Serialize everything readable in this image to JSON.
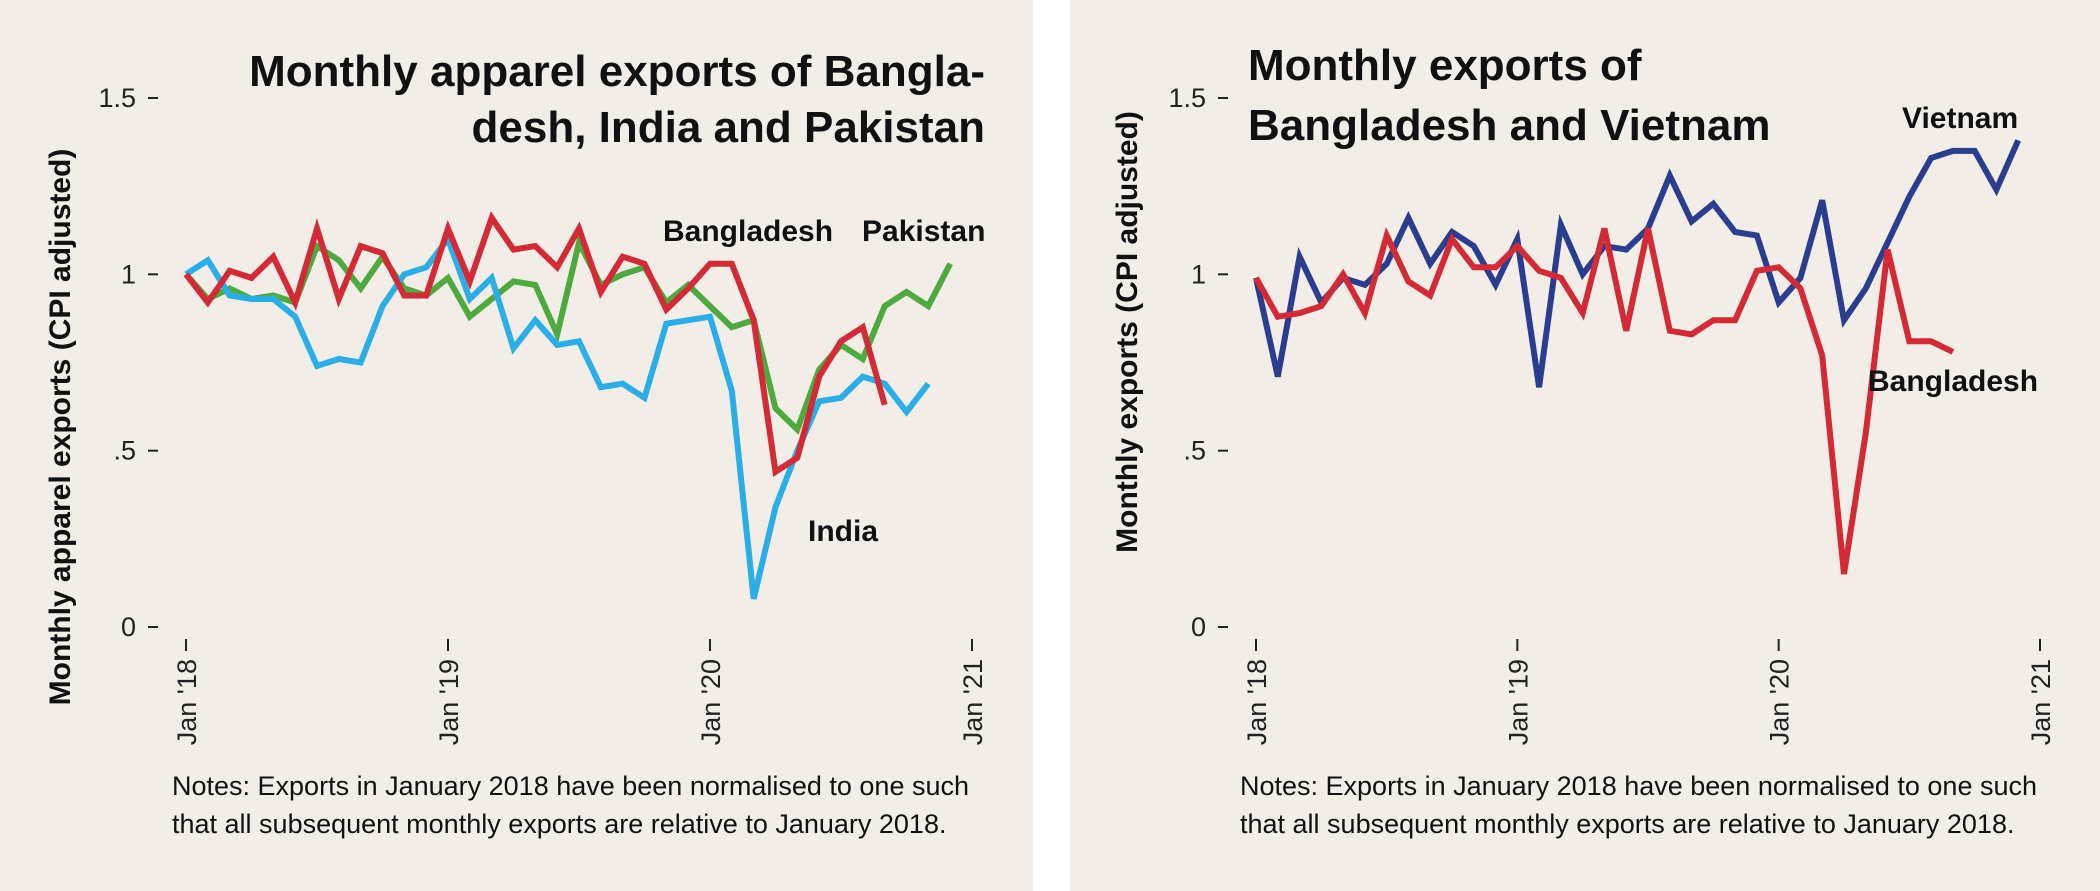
{
  "chart_data": [
    {
      "type": "line",
      "title_lines": [
        "Monthly apparel exports of Bangla-",
        "desh, India and Pakistan"
      ],
      "ylabel": "Monthly apparel exports (CPI adjusted)",
      "xlabel": "",
      "ylim": [
        0,
        1.5
      ],
      "yticks": [
        {
          "value": 0,
          "label": "0"
        },
        {
          "value": 0.5,
          "label": ".5"
        },
        {
          "value": 1,
          "label": "1"
        },
        {
          "value": 1.5,
          "label": "1.5"
        }
      ],
      "xticks": [
        {
          "month": 0,
          "label": "Jan '18"
        },
        {
          "month": 12,
          "label": "Jan '19"
        },
        {
          "month": 24,
          "label": "Jan '20"
        },
        {
          "month": 36,
          "label": "Jan '21"
        }
      ],
      "x_months": [
        0,
        1,
        2,
        3,
        4,
        5,
        6,
        7,
        8,
        9,
        10,
        11,
        12,
        13,
        14,
        15,
        16,
        17,
        18,
        19,
        20,
        21,
        22,
        23,
        24,
        25,
        26,
        27,
        28,
        29,
        30,
        31,
        32,
        33,
        34,
        35,
        36
      ],
      "series": [
        {
          "name": "Pakistan",
          "color": "#4daa3f",
          "values": [
            1.0,
            0.93,
            0.96,
            0.93,
            0.94,
            0.92,
            1.08,
            1.04,
            0.96,
            1.05,
            0.96,
            0.94,
            0.99,
            0.88,
            0.93,
            0.98,
            0.97,
            0.83,
            1.09,
            0.97,
            1.0,
            1.02,
            0.92,
            0.97,
            0.91,
            0.85,
            0.87,
            0.62,
            0.56,
            0.73,
            0.8,
            0.76,
            0.91,
            0.95,
            0.91,
            1.03,
            null
          ]
        },
        {
          "name": "India",
          "color": "#29aee8",
          "values": [
            1.0,
            1.04,
            0.94,
            0.93,
            0.93,
            0.88,
            0.74,
            0.76,
            0.75,
            0.91,
            1.0,
            1.02,
            1.1,
            0.93,
            0.99,
            0.79,
            0.87,
            0.8,
            0.81,
            0.68,
            0.69,
            0.65,
            0.86,
            0.87,
            0.88,
            0.67,
            0.08,
            0.34,
            0.5,
            0.64,
            0.65,
            0.71,
            0.69,
            0.61,
            0.69,
            null,
            null
          ]
        },
        {
          "name": "Bangladesh",
          "color": "#d42a35",
          "values": [
            1.0,
            0.92,
            1.01,
            0.99,
            1.05,
            0.92,
            1.13,
            0.93,
            1.08,
            1.06,
            0.94,
            0.94,
            1.13,
            0.98,
            1.16,
            1.07,
            1.08,
            1.02,
            1.13,
            0.95,
            1.05,
            1.03,
            0.9,
            0.96,
            1.03,
            1.03,
            0.87,
            0.44,
            0.48,
            0.71,
            0.81,
            0.85,
            0.63,
            null,
            null,
            null,
            null
          ]
        }
      ],
      "labels": {
        "Bangladesh": "Bangladesh",
        "Pakistan": "Pakistan",
        "India": "India"
      },
      "notes_lines": [
        "Notes: Exports in January 2018 have been normalised to one such",
        "that all subsequent monthly exports are relative to January 2018."
      ]
    },
    {
      "type": "line",
      "title_lines": [
        "Monthly exports of",
        "Bangladesh and Vietnam"
      ],
      "ylabel": "Monthly exports (CPI adjusted)",
      "xlabel": "",
      "ylim": [
        0,
        1.5
      ],
      "yticks": [
        {
          "value": 0,
          "label": "0"
        },
        {
          "value": 0.5,
          "label": ".5"
        },
        {
          "value": 1,
          "label": "1"
        },
        {
          "value": 1.5,
          "label": "1.5"
        }
      ],
      "xticks": [
        {
          "month": 0,
          "label": "Jan '18"
        },
        {
          "month": 12,
          "label": "Jan '19"
        },
        {
          "month": 24,
          "label": "Jan '20"
        },
        {
          "month": 36,
          "label": "Jan '21"
        }
      ],
      "x_months": [
        0,
        1,
        2,
        3,
        4,
        5,
        6,
        7,
        8,
        9,
        10,
        11,
        12,
        13,
        14,
        15,
        16,
        17,
        18,
        19,
        20,
        21,
        22,
        23,
        24,
        25,
        26,
        27,
        28,
        29,
        30,
        31,
        32,
        33,
        34,
        35,
        36
      ],
      "series": [
        {
          "name": "Vietnam",
          "color": "#2b3d8f",
          "values": [
            0.99,
            0.71,
            1.05,
            0.92,
            0.99,
            0.97,
            1.03,
            1.16,
            1.03,
            1.12,
            1.08,
            0.97,
            1.1,
            0.68,
            1.14,
            1.0,
            1.08,
            1.07,
            1.13,
            1.28,
            1.15,
            1.2,
            1.12,
            1.11,
            0.92,
            0.99,
            1.21,
            0.87,
            0.96,
            1.09,
            1.22,
            1.33,
            1.35,
            1.35,
            1.24,
            1.38,
            null
          ]
        },
        {
          "name": "Bangladesh",
          "color": "#d42a35",
          "values": [
            0.99,
            0.88,
            0.89,
            0.91,
            1.0,
            0.89,
            1.11,
            0.98,
            0.94,
            1.1,
            1.02,
            1.02,
            1.08,
            1.01,
            0.99,
            0.89,
            1.13,
            0.84,
            1.13,
            0.84,
            0.83,
            0.87,
            0.87,
            1.01,
            1.02,
            0.96,
            0.77,
            0.15,
            0.55,
            1.07,
            0.81,
            0.81,
            0.78,
            null,
            null,
            null,
            null
          ]
        }
      ],
      "labels": {
        "Vietnam": "Vietnam",
        "Bangladesh": "Bangladesh"
      },
      "notes_lines": [
        "Notes: Exports in January 2018 have been normalised to one such",
        "that all subsequent monthly exports are relative to January 2018."
      ]
    }
  ]
}
